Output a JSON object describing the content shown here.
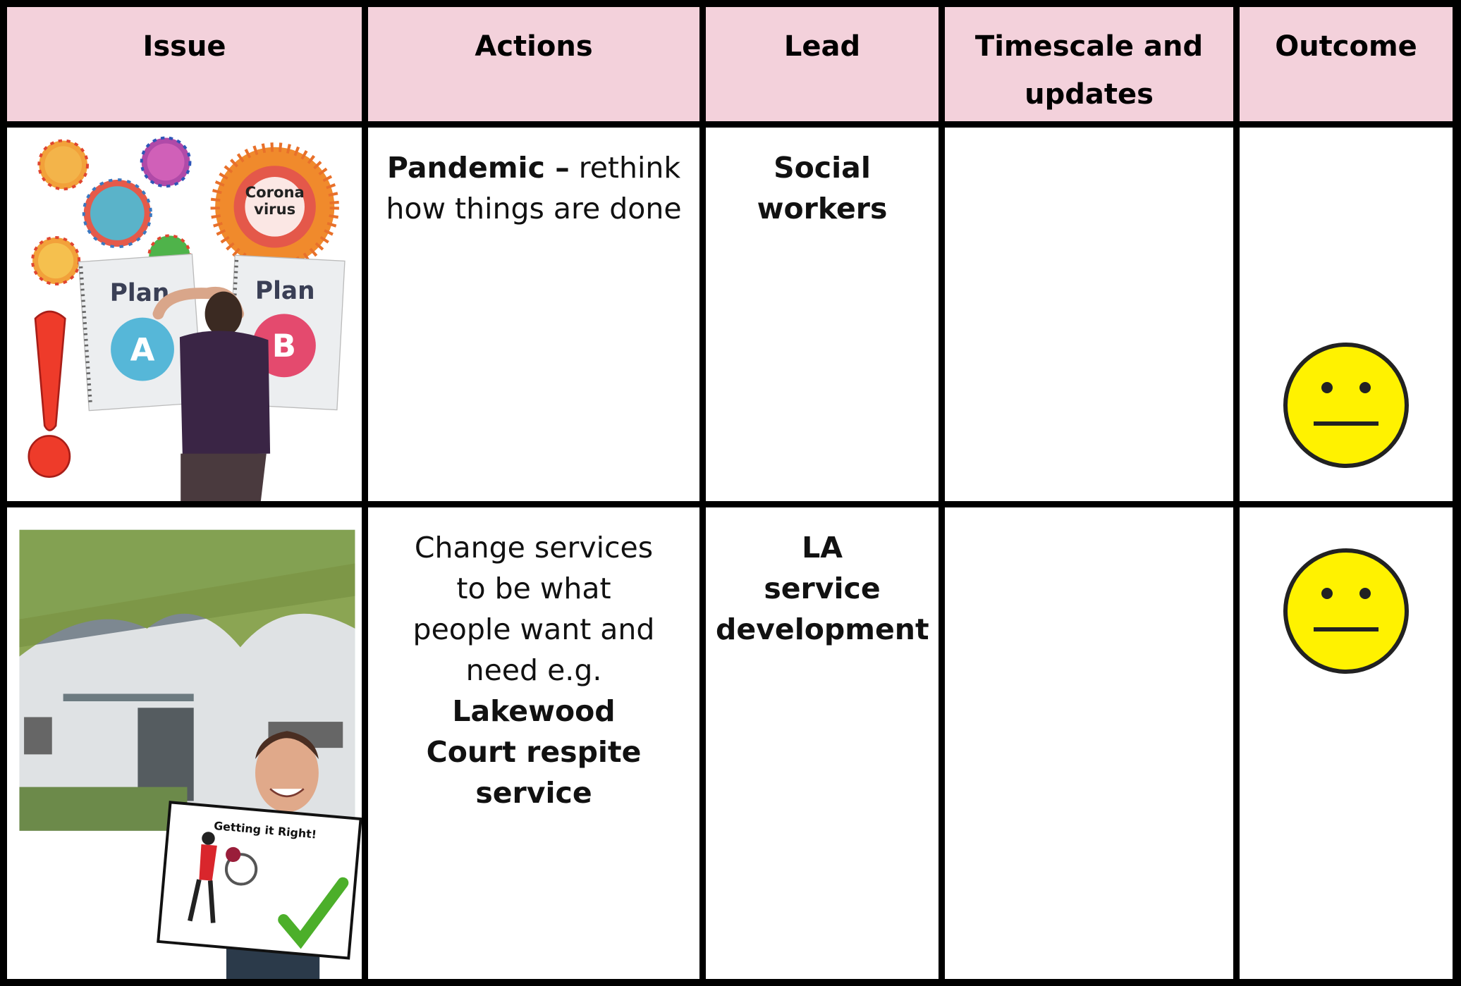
{
  "table": {
    "header": [
      "Issue",
      "Actions",
      "Lead",
      "Timescale and updates",
      "Outcome"
    ],
    "rows": [
      {
        "image_text": [
          "Corona",
          "virus",
          "Plan",
          "A",
          "Plan",
          "B"
        ],
        "actions": [
          "Pandemic –",
          "rethink how things are done"
        ],
        "lead": [
          "Social workers"
        ]
      },
      {
        "image_text": [
          "Getting it Right!"
        ],
        "actions": [
          "Change services to be what people want and need e.g.",
          "Lakewood Court respite service"
        ],
        "lead": [
          "LA",
          "service",
          "development"
        ]
      }
    ]
  }
}
